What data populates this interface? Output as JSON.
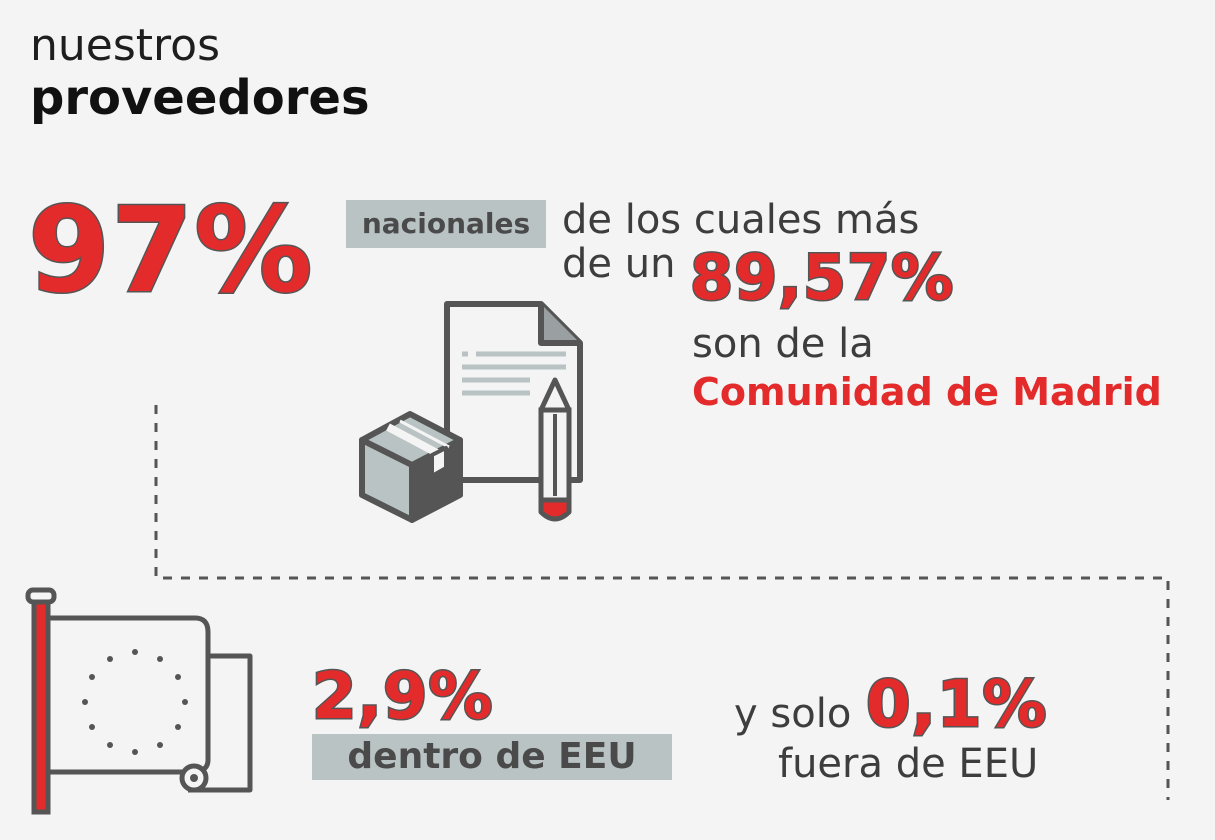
{
  "title": {
    "line1": "nuestros",
    "line2": "proveedores"
  },
  "national": {
    "percent": "97%",
    "tag": "nacionales",
    "text_line1": "de los cuales más",
    "text_line2": "de un",
    "madrid_percent": "89,57%",
    "text_line3": "son de la",
    "region": "Comunidad de Madrid"
  },
  "eu": {
    "percent": "2,9%",
    "tag": "dentro de EEU"
  },
  "outside": {
    "prefix": "y solo",
    "percent": "0,1%",
    "label": "fuera de EEU"
  },
  "icons": [
    "document-icon",
    "pencil-icon",
    "box-icon",
    "eu-flag-icon"
  ],
  "colors": {
    "accent": "#e42b2b",
    "dark": "#555555",
    "tag_bg": "#b9c3c4",
    "background": "#f4f4f4"
  }
}
